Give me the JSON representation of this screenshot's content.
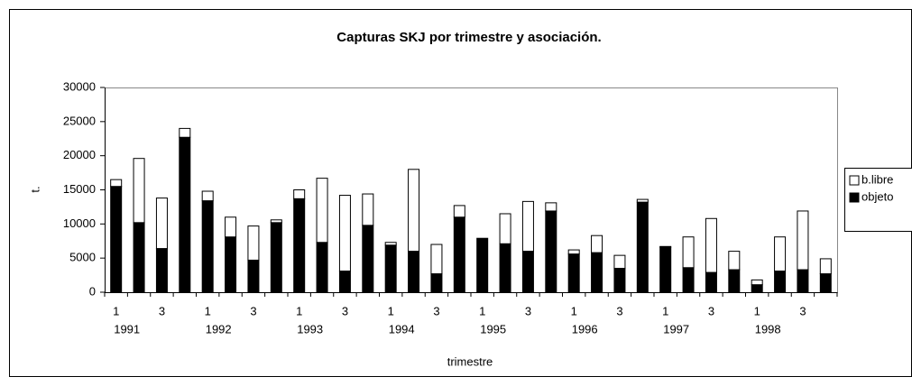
{
  "chart_data": {
    "type": "stacked_bar",
    "title": "Capturas SKJ por trimestre y asociación.",
    "x_label": "trimestre",
    "y_label": "t.",
    "categories": [
      "1",
      null,
      "3",
      null,
      "1",
      null,
      "3",
      null,
      "1",
      null,
      "3",
      null,
      "1",
      null,
      "3",
      null,
      "1",
      null,
      "3",
      null,
      "1",
      null,
      "3",
      null,
      "1",
      null,
      "3",
      null,
      "1",
      null,
      "3",
      null
    ],
    "year_labels": [
      "1991",
      "1992",
      "1993",
      "1994",
      "1995",
      "1996",
      "1997",
      "1998"
    ],
    "series": [
      {
        "name": "objeto",
        "color": "#000000",
        "values": [
          15500,
          10200,
          6400,
          22700,
          13400,
          8100,
          4700,
          10200,
          13700,
          7300,
          3100,
          9800,
          6900,
          6000,
          2700,
          11000,
          7900,
          7100,
          6000,
          11900,
          5600,
          5800,
          3500,
          13200,
          6600,
          3600,
          2900,
          3300,
          1100,
          3100,
          3300,
          2700
        ]
      },
      {
        "name": "b.libre",
        "color": "#ffffff",
        "values": [
          1000,
          9400,
          7400,
          1300,
          1400,
          2900,
          5000,
          400,
          1300,
          9400,
          11100,
          4600,
          400,
          12000,
          4300,
          1700,
          0,
          4400,
          7300,
          1200,
          600,
          2500,
          1900,
          400,
          100,
          4500,
          7900,
          2700,
          700,
          5000,
          8600,
          2200
        ]
      }
    ],
    "ylim": [
      0,
      30000
    ],
    "yticks": [
      0,
      5000,
      10000,
      15000,
      20000,
      25000,
      30000
    ],
    "grid": false,
    "legend": "right"
  }
}
